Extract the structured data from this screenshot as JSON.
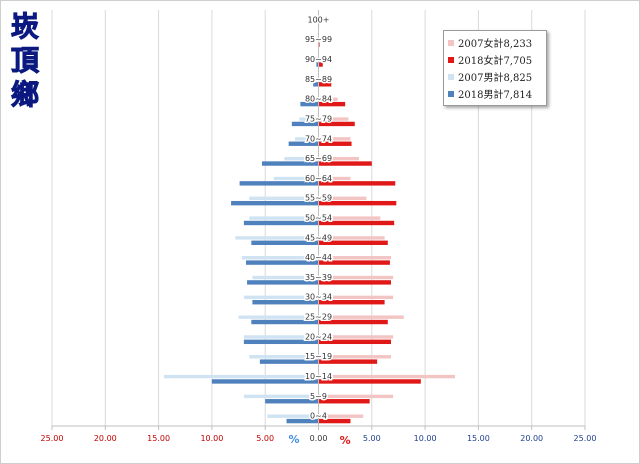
{
  "side_title": [
    "崁",
    "頂",
    "鄉"
  ],
  "colors": {
    "female_2007": "#f2c4c4",
    "female_2018": "#e01818",
    "male_2007": "#cfe3f2",
    "male_2018": "#4f81bd",
    "axis_left_text": "#c00000",
    "axis_right_text": "#1f3f8f",
    "percent_left": "#3f8ee0",
    "percent_right": "#e01818"
  },
  "chart_data": {
    "type": "bar",
    "orientation": "horizontal",
    "layout": "population-pyramid",
    "categories": [
      "100+",
      "95~99",
      "90~94",
      "85~89",
      "80~84",
      "75~79",
      "70~74",
      "65~69",
      "60~64",
      "55~59",
      "50~54",
      "45~49",
      "40~44",
      "35~39",
      "30~34",
      "25~29",
      "20~24",
      "15~19",
      "10~14",
      "5~9",
      "0~4"
    ],
    "series": [
      {
        "name": "2007女計8,233",
        "side": "right",
        "values": [
          0,
          0.05,
          0.3,
          0.8,
          1.8,
          2.8,
          3.0,
          3.8,
          3.0,
          4.5,
          5.8,
          6.2,
          6.8,
          7.0,
          7.0,
          8.0,
          7.0,
          6.8,
          12.8,
          7.0,
          4.2
        ]
      },
      {
        "name": "2018女計7,705",
        "side": "right",
        "values": [
          0.05,
          0.1,
          0.4,
          1.2,
          2.5,
          3.4,
          3.1,
          5.0,
          7.2,
          7.3,
          7.1,
          6.5,
          6.7,
          6.8,
          6.2,
          6.5,
          6.8,
          5.5,
          9.6,
          4.8,
          3.0
        ]
      },
      {
        "name": "2007男計8,825",
        "side": "left",
        "values": [
          0,
          0.05,
          0.1,
          0.3,
          0.8,
          1.8,
          2.2,
          3.2,
          4.2,
          6.5,
          6.5,
          7.8,
          7.2,
          6.2,
          7.0,
          7.5,
          7.0,
          6.5,
          14.5,
          7.0,
          4.8
        ]
      },
      {
        "name": "2018男計7,814",
        "side": "left",
        "values": [
          0,
          0.05,
          0.2,
          0.5,
          1.7,
          2.5,
          2.8,
          5.3,
          7.4,
          8.2,
          7.0,
          6.3,
          6.8,
          6.7,
          6.2,
          6.3,
          7.0,
          5.5,
          10.0,
          5.0,
          3.0
        ]
      }
    ],
    "xlim": [
      -25,
      25
    ],
    "x_ticks": [
      "25.00",
      "20.00",
      "15.00",
      "10.00",
      "5.00",
      "0.00",
      "5.00",
      "10.00",
      "15.00",
      "20.00",
      "25.00"
    ],
    "x_tick_values": [
      -25,
      -20,
      -15,
      -10,
      -5,
      0,
      5,
      10,
      15,
      20,
      25
    ],
    "left_unit": "%",
    "right_unit": "%",
    "legend_position": "top-right",
    "grid": "vertical"
  }
}
